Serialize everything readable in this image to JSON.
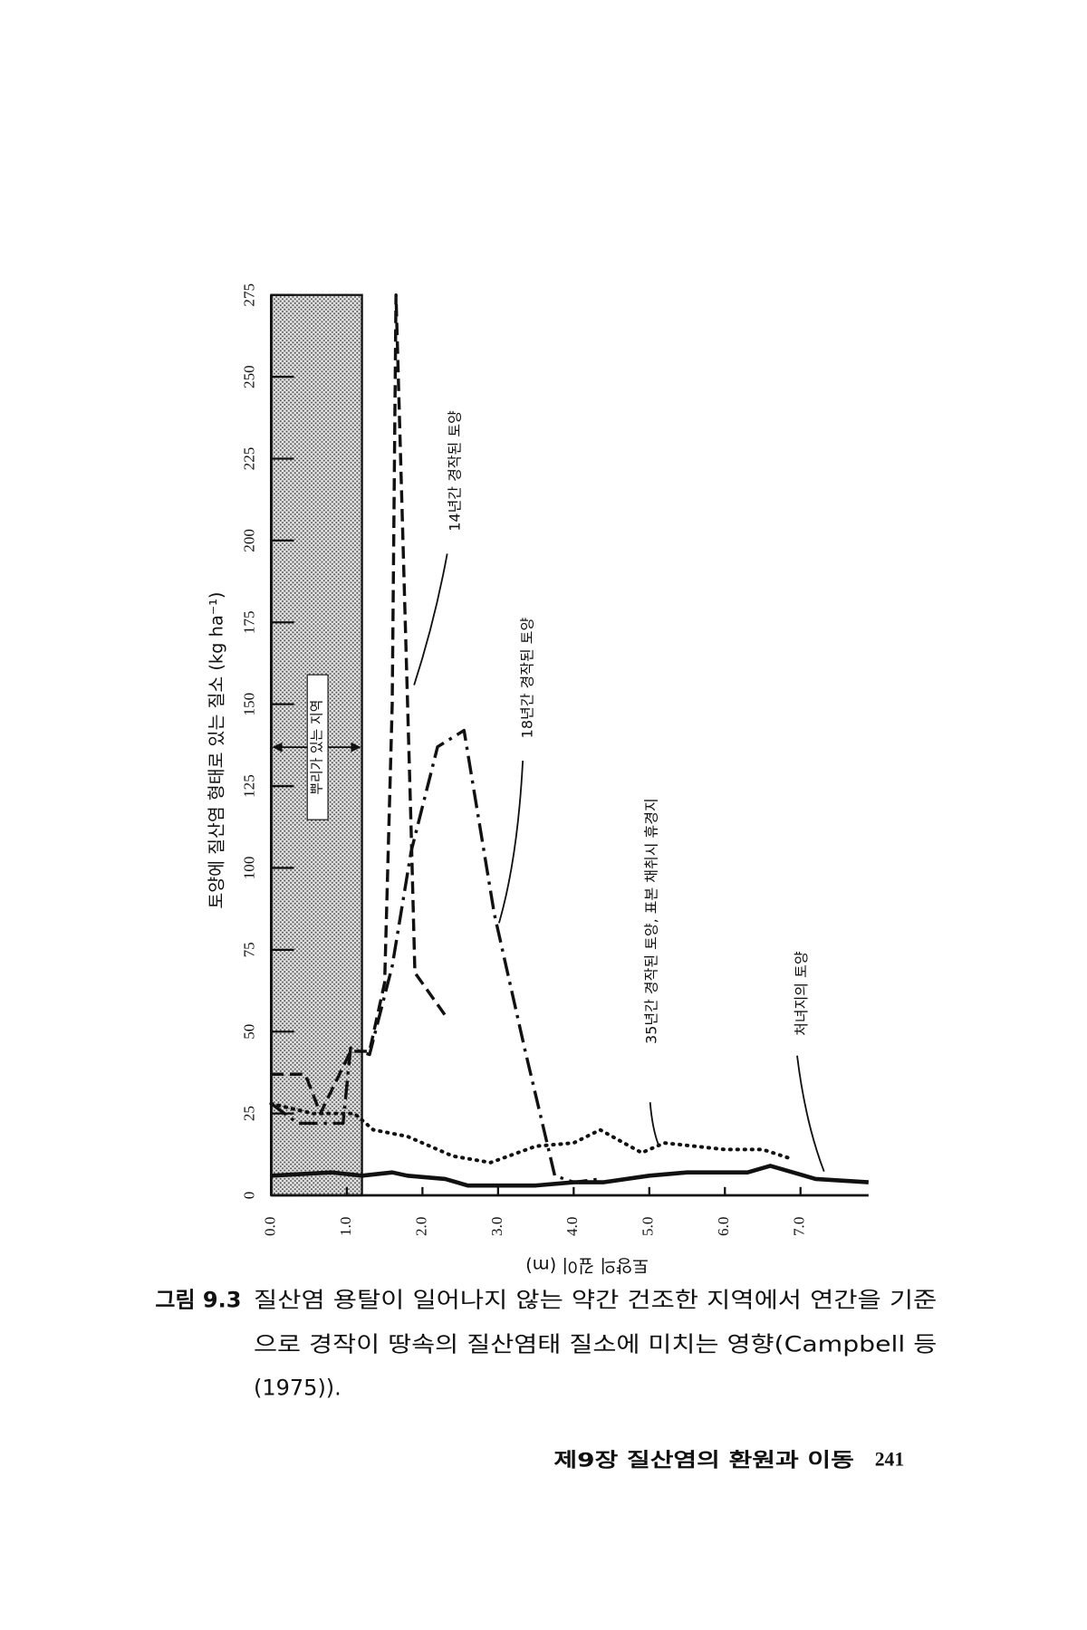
{
  "chart_data": {
    "type": "line",
    "x_label": "토양의 깊이 (m)",
    "y_label": "토양에 질산염 형태로 있는 질소 (kg ha⁻¹)",
    "xlim": [
      0,
      7.9
    ],
    "ylim": [
      0,
      275
    ],
    "xticks": [
      {
        "value": 0,
        "label": "0.0"
      },
      {
        "value": 1,
        "label": "1.0"
      },
      {
        "value": 2,
        "label": "2.0"
      },
      {
        "value": 3,
        "label": "3.0"
      },
      {
        "value": 4,
        "label": "4.0"
      },
      {
        "value": 5,
        "label": "5.0"
      },
      {
        "value": 6,
        "label": "6.0"
      },
      {
        "value": 7,
        "label": "7.0"
      }
    ],
    "yticks": [
      0,
      25,
      50,
      75,
      100,
      125,
      150,
      175,
      200,
      225,
      250,
      275
    ],
    "root_zone": {
      "label": "뿌리가 있는 지역",
      "range": [
        0,
        1.2
      ]
    },
    "series": [
      {
        "name": "14년간 경작된 토양",
        "color": "#111",
        "style": "dashed",
        "x": [
          0,
          0.45,
          0.65,
          1.05,
          1.3,
          1.5,
          1.6,
          1.65,
          1.85,
          1.9,
          2.3
        ],
        "values": [
          37,
          37,
          25,
          44,
          44,
          65,
          150,
          275,
          112,
          68,
          55
        ]
      },
      {
        "name": "18년간 경작된 토양",
        "color": "#111",
        "style": "dash-dot",
        "x": [
          0,
          0.35,
          0.95,
          1.05,
          1.3,
          1.6,
          1.85,
          2.2,
          2.55,
          2.95,
          3.35,
          3.75,
          4.0,
          4.35
        ],
        "values": [
          28,
          22,
          22,
          45,
          43,
          70,
          105,
          137,
          142,
          86,
          45,
          6,
          4,
          5
        ]
      },
      {
        "name": "35년간 경작된 토양, 표본 채취시 휴경지",
        "color": "#111",
        "style": "dotted",
        "x": [
          0,
          0.55,
          1.1,
          1.35,
          1.8,
          2.4,
          2.9,
          3.5,
          4.0,
          4.35,
          4.9,
          5.2,
          6.0,
          6.5,
          6.9
        ],
        "values": [
          28,
          25,
          25,
          20,
          18,
          12,
          10,
          15,
          16,
          20,
          13,
          16,
          14,
          14,
          11
        ]
      },
      {
        "name": "처녀지의 토양",
        "color": "#111",
        "style": "solid",
        "x": [
          0,
          0.8,
          1.2,
          1.6,
          1.8,
          2.3,
          2.6,
          3.5,
          4.0,
          4.4,
          5.0,
          5.5,
          6.0,
          6.3,
          6.6,
          7.2,
          7.9
        ],
        "values": [
          6,
          7,
          6,
          7,
          6,
          5,
          3,
          3,
          4,
          4,
          6,
          7,
          7,
          7,
          9,
          5,
          4
        ]
      }
    ]
  },
  "caption": {
    "label": "그림 9.3",
    "lines": [
      "질산염 용탈이 일어나지 않는 약간 건조한 지역에서 연간을 기준",
      "으로 경작이 땅속의 질산염태 질소에 미치는 영향(Campbell 등",
      "(1975))."
    ]
  },
  "footer": {
    "chapter": "제9장 질산염의 환원과 이동",
    "page": 241
  }
}
